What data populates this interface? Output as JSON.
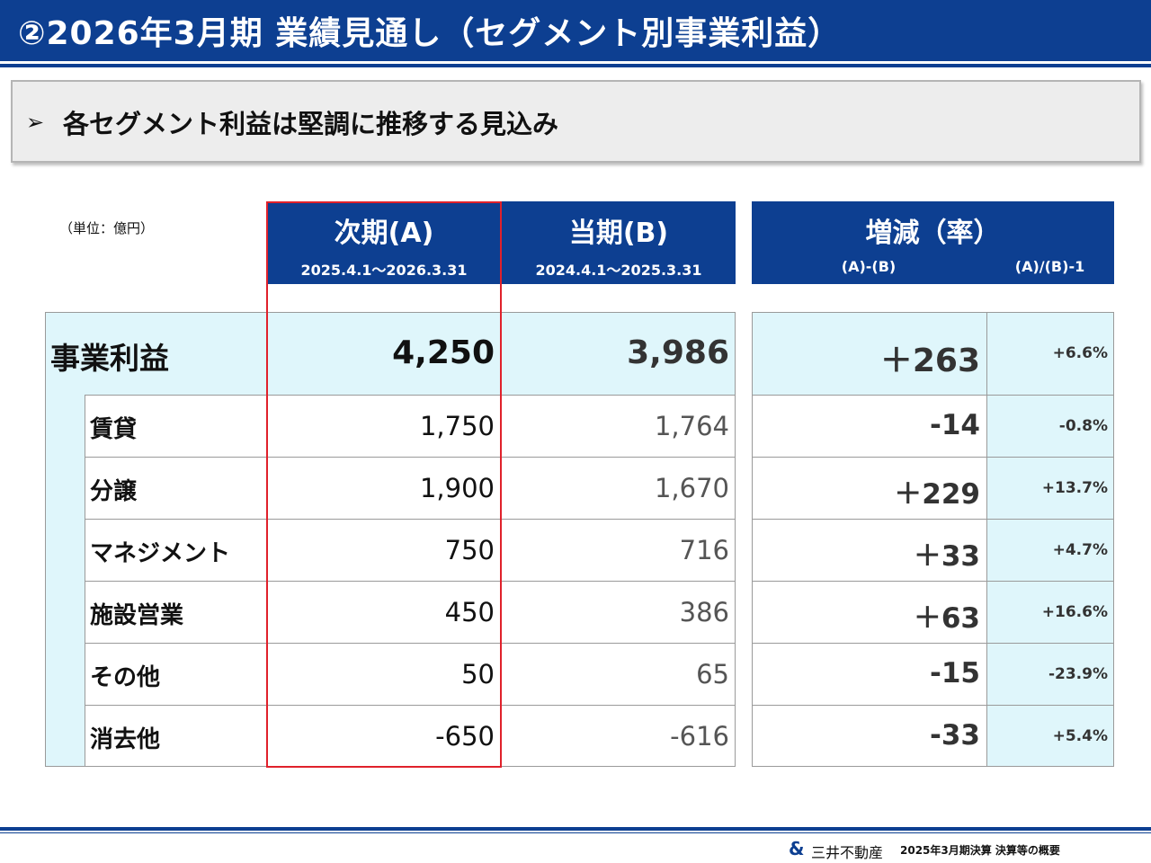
{
  "title": "②2026年3月期 業績見通し（セグメント別事業利益）",
  "subtitle": {
    "arrow": "➢",
    "text": "各セグメント利益は堅調に推移する見込み"
  },
  "unit_note": "（単位：億円）",
  "headers": {
    "next": {
      "label": "次期(A)",
      "period": "2025.4.1～2026.3.31"
    },
    "current": {
      "label": "当期(B)",
      "period": "2024.4.1～2025.3.31"
    },
    "change": {
      "label": "増減（率）",
      "diff": "(A)-(B)",
      "rate": "(A)/(B)-1"
    }
  },
  "total": {
    "label": "事業利益",
    "next": "4,250",
    "current": "3,986",
    "diff": "＋263",
    "rate": "+6.6%"
  },
  "segments": [
    {
      "label": "賃貸",
      "next": "1,750",
      "current": "1,764",
      "diff": "-14",
      "rate": "-0.8%"
    },
    {
      "label": "分譲",
      "next": "1,900",
      "current": "1,670",
      "diff": "＋229",
      "rate": "+13.7%"
    },
    {
      "label": "マネジメント",
      "next": "750",
      "current": "716",
      "diff": "＋33",
      "rate": "+4.7%"
    },
    {
      "label": "施設営業",
      "next": "450",
      "current": "386",
      "diff": "＋63",
      "rate": "+16.6%"
    },
    {
      "label": "その他",
      "next": "50",
      "current": "65",
      "diff": "-15",
      "rate": "-23.9%"
    },
    {
      "label": "消去他",
      "next": "-650",
      "current": "-616",
      "diff": "-33",
      "rate": "+5.4%"
    }
  ],
  "footer": {
    "logo": "&",
    "company": "三井不動産",
    "document": "2025年3月期決算  決算等の概要"
  },
  "colors": {
    "brand_blue": "#0d3f91",
    "light_blue": "#dff6fb",
    "highlight_red": "#e0212b"
  }
}
